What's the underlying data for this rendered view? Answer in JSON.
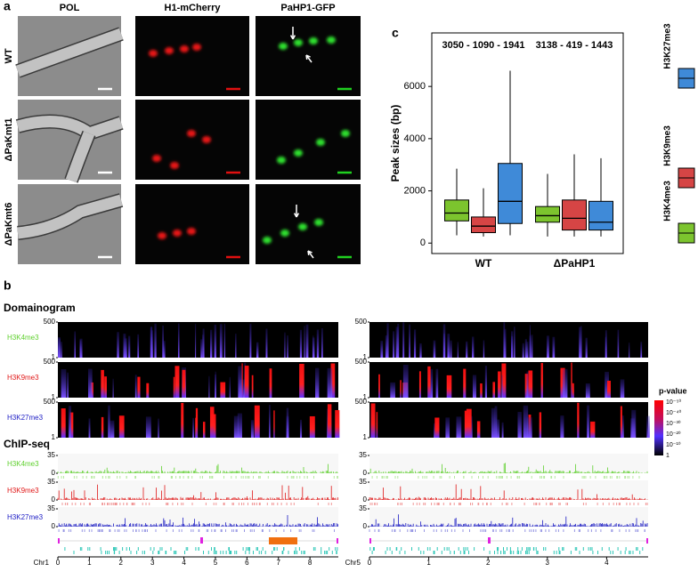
{
  "panel_a": {
    "label": "a",
    "columns": [
      "POL",
      "H1-mCherry",
      "PaHP1-GFP"
    ],
    "rows": [
      "WT",
      "ΔPaKmt1",
      "ΔPaKmt6"
    ]
  },
  "panel_b": {
    "label": "b",
    "domainogram_title": "Domainogram",
    "chipseq_title": "ChIP-seq",
    "marks": [
      {
        "name": "H3K4me3",
        "color": "#5fd02e"
      },
      {
        "name": "H3K9me3",
        "color": "#e01818"
      },
      {
        "name": "H3K27me3",
        "color": "#1c1cc4"
      }
    ],
    "domainogram_yticks": [
      500,
      1
    ],
    "chipseq_yticks": [
      35,
      0
    ],
    "pvalue": {
      "title": "p-value",
      "ticks": [
        "10⁻⁵⁰",
        "10⁻⁴⁰",
        "10⁻³⁰",
        "10⁻²⁰",
        "10⁻¹⁰",
        "1"
      ]
    },
    "chromosomes": [
      {
        "name": "Chr1",
        "xlim": [
          0,
          8.9
        ],
        "xticks": [
          0,
          1,
          2,
          3,
          4,
          5,
          6,
          7,
          8
        ]
      },
      {
        "name": "Chr5",
        "xlim": [
          0,
          4.7
        ],
        "xticks": [
          0,
          1,
          2,
          3,
          4
        ]
      }
    ]
  },
  "panel_c": {
    "label": "c"
  },
  "chart_data": {
    "type": "box",
    "y_label": "Peak sizes (bp)",
    "categories": [
      "WT",
      "ΔPaHP1"
    ],
    "annotations": [
      "3050 - 1090 - 1941",
      "3138 - 419 - 1443"
    ],
    "ylim": [
      -400,
      8050
    ],
    "yticks": [
      0,
      2000,
      4000,
      6000
    ],
    "series": [
      {
        "name": "H3K4me3",
        "color": "#7cc42e",
        "min": [
          300,
          250
        ],
        "q1": [
          850,
          800
        ],
        "median": [
          1150,
          1050
        ],
        "q3": [
          1650,
          1400
        ],
        "max": [
          2850,
          2650
        ]
      },
      {
        "name": "H3K9me3",
        "color": "#d64545",
        "min": [
          250,
          250
        ],
        "q1": [
          400,
          500
        ],
        "median": [
          650,
          950
        ],
        "q3": [
          1000,
          1650
        ],
        "max": [
          2100,
          3400
        ]
      },
      {
        "name": "H3K27me3",
        "color": "#3f8ad8",
        "min": [
          300,
          250
        ],
        "q1": [
          750,
          500
        ],
        "median": [
          1600,
          800
        ],
        "q3": [
          3050,
          1600
        ],
        "max": [
          6600,
          3250
        ]
      }
    ]
  }
}
